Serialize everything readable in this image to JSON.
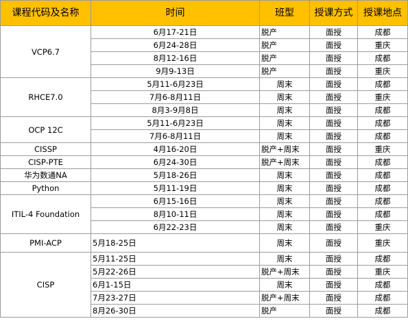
{
  "headers": {
    "course": "课程代码及名称",
    "time": "时间",
    "class_type": "班型",
    "method": "授课方式",
    "location": "授课地点"
  },
  "rows": [
    {
      "course": "VCP6.7",
      "time": "6月17-21日",
      "type": "脱产",
      "method": "面授",
      "location": "成都"
    },
    {
      "time": "6月24-28日",
      "type": "脱产",
      "method": "面授",
      "location": "重庆"
    },
    {
      "time": "8月12-16日",
      "type": "脱产",
      "method": "面授",
      "location": "成都"
    },
    {
      "time": "9月9-13日",
      "type": "脱产",
      "method": "面授",
      "location": "重庆"
    },
    {
      "course": "RHCE7.0",
      "time": "5月11-6月23日",
      "type": "周末",
      "method": "面授",
      "location": "成都"
    },
    {
      "time": "7月6-8月11日",
      "type": "周末",
      "method": "面授",
      "location": "重庆"
    },
    {
      "time": "8月3-9月8日",
      "type": "周末",
      "method": "面授",
      "location": "成都"
    },
    {
      "course": "OCP 12C",
      "time": "5月11-6月23日",
      "type": "周末",
      "method": "面授",
      "location": "成都"
    },
    {
      "time": "7月6-8月11日",
      "type": "周末",
      "method": "面授",
      "location": "成都"
    },
    {
      "course": "CISSP",
      "time": "4月16-20日",
      "type": "脱产+周末",
      "method": "面授",
      "location": "重庆"
    },
    {
      "course": "CISP-PTE",
      "time": "6月24-30日",
      "type": "脱产+周末",
      "method": "面授",
      "location": "成都"
    },
    {
      "course": "华为数通NA",
      "time": "5月18-26日",
      "type": "周末",
      "method": "面授",
      "location": "成都"
    },
    {
      "course": "Python",
      "time": "5月11-19日",
      "type": "周末",
      "method": "面授",
      "location": "成都"
    },
    {
      "course": "ITIL-4 Foundation",
      "time": "6月15-16日",
      "type": "周末",
      "method": "面授",
      "location": "成都"
    },
    {
      "time": "8月10-11日",
      "type": "周末",
      "method": "面授",
      "location": "成都"
    },
    {
      "time": "6月22-23日",
      "type": "周末",
      "method": "面授",
      "location": "重庆"
    },
    {
      "course": "PMI-ACP",
      "time": "5月18-25日",
      "type": "周末",
      "method": "面授",
      "location": "重庆"
    },
    {
      "course": "CISP",
      "time": "5月11-25日",
      "type": "周末",
      "method": "面授",
      "location": "成都"
    },
    {
      "time": "5月22-26日",
      "type": "脱产+周末",
      "method": "面授",
      "location": "重庆"
    },
    {
      "time": "6月1-15日",
      "type": "周末",
      "method": "面授",
      "location": "成都"
    },
    {
      "time": "7月23-27日",
      "type": "脱产+周末",
      "method": "面授",
      "location": "成都"
    },
    {
      "time": "8月26-30日",
      "type": "脱产",
      "method": "面授",
      "location": "成都"
    }
  ]
}
